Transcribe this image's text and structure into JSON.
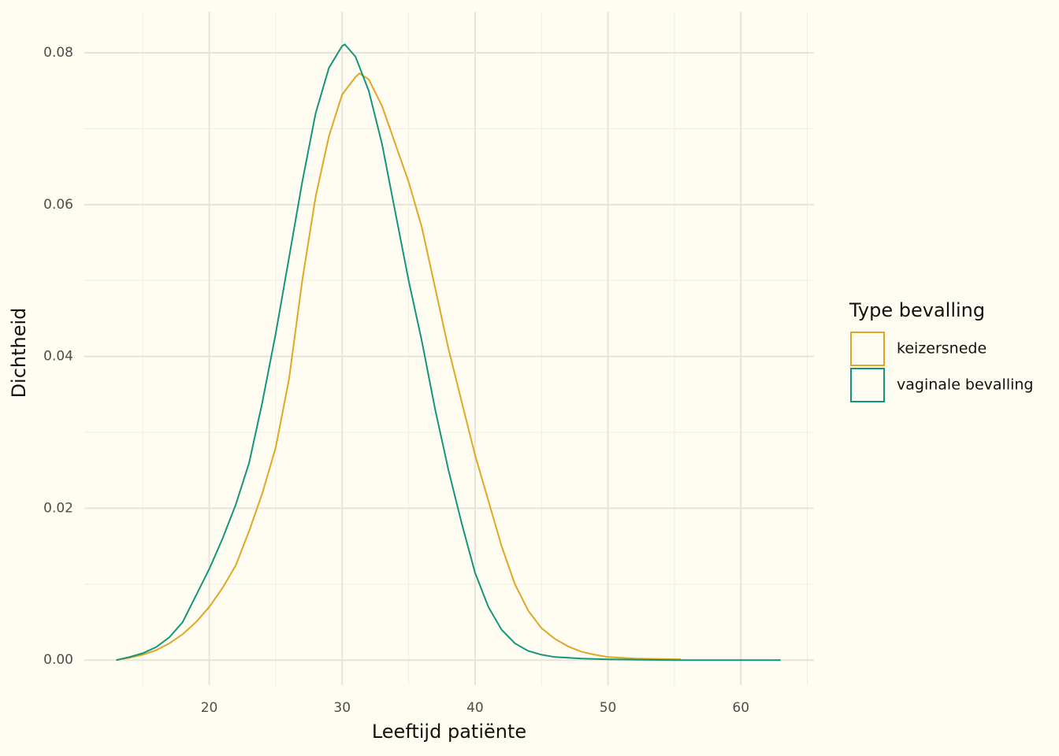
{
  "chart_data": {
    "type": "line",
    "x_label": "Leeftijd patiënte",
    "y_label": "Dichtheid",
    "legend_title": "Type bevalling",
    "legend": "right",
    "xlim": [
      10.6,
      65.5
    ],
    "ylim": [
      -0.0033,
      0.0854
    ],
    "xticks": [
      20,
      30,
      40,
      50,
      60
    ],
    "yticks": [
      {
        "value": 0,
        "label": "0.00"
      },
      {
        "value": 0.02,
        "label": "0.02"
      },
      {
        "value": 0.04,
        "label": "0.04"
      },
      {
        "value": 0.06,
        "label": "0.06"
      },
      {
        "value": 0.08,
        "label": "0.08"
      }
    ],
    "x_minor_grid": [
      15,
      25,
      35,
      45,
      55,
      65
    ],
    "y_minor_grid": [
      0.01,
      0.03,
      0.05,
      0.07
    ],
    "grid": true,
    "series": [
      {
        "name": "keizersnede",
        "color": "#e0a722",
        "x": [
          13,
          14,
          15,
          16,
          17,
          18,
          19,
          20,
          21,
          22,
          23,
          24,
          25,
          26,
          27,
          28,
          29,
          30,
          31,
          31.3,
          32,
          33,
          34,
          35,
          36,
          37,
          38,
          39,
          40,
          41,
          42,
          43,
          44,
          45,
          46,
          47,
          48,
          49,
          50,
          52,
          55.5
        ],
        "values": [
          0,
          0.0003,
          0.0007,
          0.0013,
          0.0022,
          0.0034,
          0.005,
          0.007,
          0.0095,
          0.0125,
          0.017,
          0.022,
          0.028,
          0.037,
          0.05,
          0.061,
          0.069,
          0.0745,
          0.0768,
          0.0773,
          0.0765,
          0.073,
          0.068,
          0.063,
          0.057,
          0.049,
          0.041,
          0.034,
          0.027,
          0.021,
          0.015,
          0.01,
          0.0065,
          0.0042,
          0.0028,
          0.0018,
          0.0011,
          0.0007,
          0.0004,
          0.0002,
          0.0001
        ]
      },
      {
        "name": "vaginale bevalling",
        "color": "#14957a",
        "x": [
          13,
          14,
          15,
          16,
          17,
          18,
          19,
          20,
          21,
          22,
          23,
          24,
          25,
          26,
          27,
          28,
          29,
          30,
          30.2,
          31,
          32,
          33,
          34,
          35,
          36,
          37,
          38,
          39,
          40,
          41,
          42,
          43,
          44,
          45,
          46,
          48,
          50,
          55,
          63
        ],
        "values": [
          0,
          0.0004,
          0.0009,
          0.0017,
          0.003,
          0.005,
          0.0085,
          0.012,
          0.016,
          0.0205,
          0.026,
          0.034,
          0.043,
          0.053,
          0.063,
          0.072,
          0.078,
          0.0809,
          0.0811,
          0.0795,
          0.075,
          0.068,
          0.059,
          0.05,
          0.042,
          0.033,
          0.025,
          0.018,
          0.0115,
          0.007,
          0.004,
          0.0022,
          0.0012,
          0.0007,
          0.0004,
          0.0002,
          0.0001,
          0,
          0
        ]
      }
    ]
  }
}
